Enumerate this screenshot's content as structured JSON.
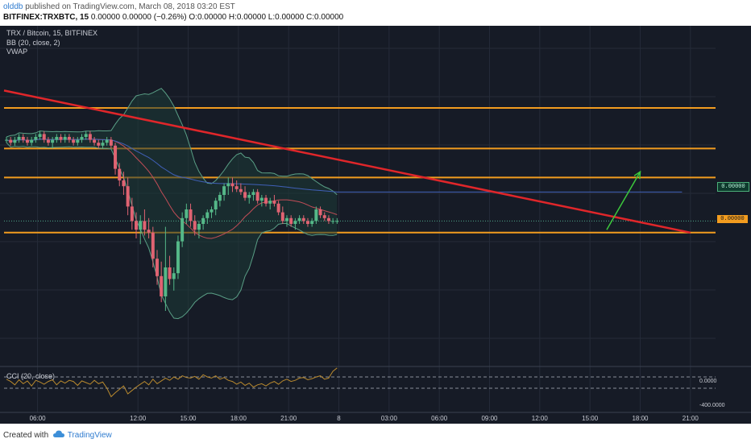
{
  "header": {
    "author": "olddb",
    "published": " published on TradingView.com, March 08, 2018 03:20 EST",
    "symbol": "BITFINEX:TRXBTC, 15",
    "ohlc": " 0.00000 0.00000 (−0.26%) O:0.00000 H:0.00000 L:0.00000 C:0.00000"
  },
  "legend": {
    "title": "TRX / Bitcoin, 15, BITFINEX",
    "bb": "BB (20, close, 2)",
    "vwap": "VWAP"
  },
  "price_labels": {
    "green": "0.00000",
    "orange": "0.00000"
  },
  "cci": {
    "label": "CCI (20, close)",
    "axis": [
      "0.0000",
      "-400.0000"
    ]
  },
  "xaxis": [
    "06:00",
    "12:00",
    "15:00",
    "18:00",
    "21:00",
    "8",
    "03:00",
    "06:00",
    "09:00",
    "12:00",
    "15:00",
    "18:00",
    "21:00"
  ],
  "footer": {
    "created": "Created with",
    "brand": "TradingView"
  },
  "colors": {
    "background": "#161b26",
    "up": "#55b888",
    "down": "#e06372",
    "bb_band": "#5a9f86",
    "bb_basis": "#c24d57",
    "vwap": "#4060b8",
    "level": "#f29c1f",
    "trendline": "#e0262a",
    "arrow": "#3cc83c",
    "cci": "#b8892e"
  },
  "icons": {
    "brand": "tradingview-cloud-icon"
  },
  "chart_data": {
    "type": "candlestick",
    "x_start": "2018-03-07 04:00",
    "x_end": "2018-03-08 22:30",
    "candle_interval": "15min",
    "y_range_relative": [
      0,
      100
    ],
    "horizontal_levels": [
      85,
      71,
      61,
      42
    ],
    "trendline": [
      {
        "t": "2018-03-07 04:00",
        "y": 91
      },
      {
        "t": "2018-03-08 21:00",
        "y": 42
      }
    ],
    "arrow": [
      {
        "t": "2018-03-08 16:00",
        "y": 43
      },
      {
        "t": "2018-03-08 18:00",
        "y": 63
      }
    ],
    "ohlc": [
      [
        74,
        75,
        73,
        74
      ],
      [
        74,
        75,
        72,
        73
      ],
      [
        73,
        75,
        72,
        74
      ],
      [
        74,
        76,
        73,
        75
      ],
      [
        75,
        76,
        73,
        74
      ],
      [
        74,
        75,
        72,
        73
      ],
      [
        73,
        75,
        72,
        74
      ],
      [
        74,
        76,
        73,
        75
      ],
      [
        75,
        77,
        74,
        76
      ],
      [
        76,
        77,
        73,
        74
      ],
      [
        74,
        75,
        72,
        73
      ],
      [
        73,
        75,
        71,
        74
      ],
      [
        74,
        76,
        73,
        75
      ],
      [
        75,
        76,
        73,
        74
      ],
      [
        74,
        76,
        73,
        75
      ],
      [
        75,
        76,
        73,
        74
      ],
      [
        74,
        75,
        72,
        73
      ],
      [
        73,
        75,
        72,
        74
      ],
      [
        74,
        76,
        73,
        75
      ],
      [
        75,
        77,
        74,
        76
      ],
      [
        76,
        77,
        73,
        74
      ],
      [
        74,
        75,
        72,
        73
      ],
      [
        73,
        74,
        71,
        72
      ],
      [
        72,
        74,
        71,
        73
      ],
      [
        73,
        75,
        72,
        74
      ],
      [
        74,
        75,
        71,
        72
      ],
      [
        72,
        73,
        62,
        64
      ],
      [
        64,
        66,
        58,
        60
      ],
      [
        60,
        63,
        55,
        58
      ],
      [
        58,
        61,
        48,
        51
      ],
      [
        51,
        54,
        43,
        46
      ],
      [
        46,
        49,
        40,
        43
      ],
      [
        43,
        48,
        38,
        46
      ],
      [
        46,
        50,
        41,
        43
      ],
      [
        43,
        47,
        40,
        42
      ],
      [
        42,
        44,
        30,
        33
      ],
      [
        33,
        36,
        24,
        27
      ],
      [
        27,
        32,
        18,
        20
      ],
      [
        20,
        44,
        15,
        30
      ],
      [
        30,
        34,
        24,
        26
      ],
      [
        26,
        30,
        22,
        28
      ],
      [
        28,
        41,
        26,
        39
      ],
      [
        39,
        49,
        37,
        47
      ],
      [
        47,
        52,
        45,
        50
      ],
      [
        50,
        52,
        44,
        46
      ],
      [
        46,
        48,
        41,
        43
      ],
      [
        43,
        46,
        40,
        45
      ],
      [
        45,
        48,
        43,
        47
      ],
      [
        47,
        50,
        45,
        49
      ],
      [
        49,
        51,
        47,
        50
      ],
      [
        50,
        54,
        48,
        53
      ],
      [
        53,
        56,
        51,
        55
      ],
      [
        55,
        59,
        53,
        58
      ],
      [
        58,
        61,
        55,
        59
      ],
      [
        59,
        61,
        56,
        58
      ],
      [
        58,
        60,
        56,
        57
      ],
      [
        57,
        59,
        55,
        56
      ],
      [
        56,
        58,
        53,
        54
      ],
      [
        54,
        56,
        52,
        55
      ],
      [
        55,
        57,
        53,
        56
      ],
      [
        56,
        57,
        52,
        53
      ],
      [
        53,
        55,
        51,
        54
      ],
      [
        54,
        55,
        51,
        52
      ],
      [
        52,
        54,
        50,
        53
      ],
      [
        53,
        55,
        51,
        52
      ],
      [
        52,
        53,
        48,
        49
      ],
      [
        49,
        51,
        45,
        46
      ],
      [
        46,
        48,
        44,
        47
      ],
      [
        47,
        48,
        44,
        45
      ],
      [
        45,
        47,
        43,
        46
      ],
      [
        46,
        48,
        45,
        47
      ],
      [
        47,
        48,
        45,
        46
      ],
      [
        46,
        47,
        44,
        45
      ],
      [
        45,
        47,
        44,
        46
      ],
      [
        46,
        51,
        45,
        50
      ],
      [
        50,
        51,
        47,
        48
      ],
      [
        48,
        49,
        46,
        47
      ],
      [
        47,
        48,
        45,
        46
      ],
      [
        46,
        47,
        45,
        46
      ],
      [
        46,
        47,
        45,
        46
      ]
    ],
    "cci_values": [
      60,
      20,
      -40,
      50,
      -20,
      30,
      -60,
      40,
      10,
      -30,
      20,
      50,
      -40,
      30,
      -10,
      40,
      20,
      -50,
      30,
      0,
      -30,
      40,
      -20,
      10,
      -100,
      -250,
      -180,
      -120,
      -60,
      -200,
      -140,
      -80,
      -30,
      20,
      -40,
      60,
      -20,
      30,
      80,
      40,
      100,
      60,
      120,
      90,
      80,
      110,
      60,
      140,
      100,
      80,
      120,
      60,
      90,
      40,
      20,
      -30,
      10,
      -50,
      -10,
      -80,
      -40,
      -20,
      -60,
      -10,
      20,
      -30,
      30,
      60,
      20,
      40,
      80,
      90,
      50,
      70,
      100,
      120,
      60,
      80,
      200,
      260
    ]
  }
}
